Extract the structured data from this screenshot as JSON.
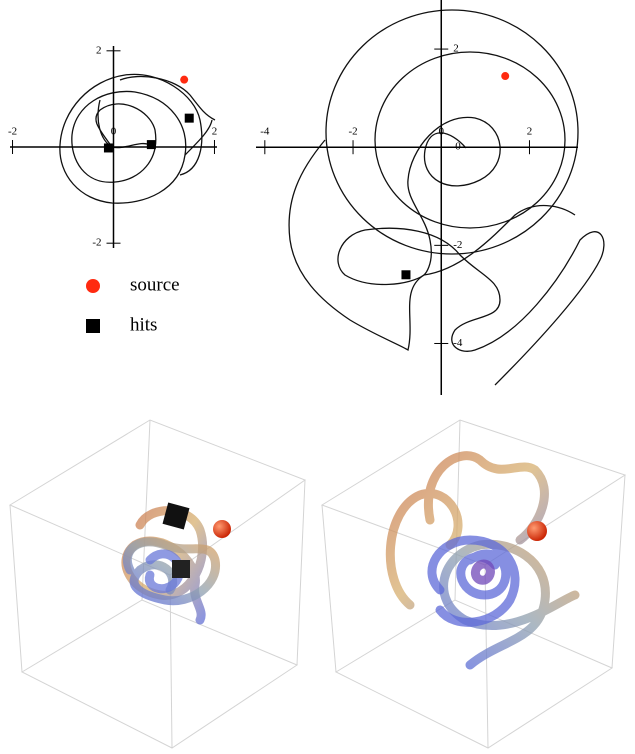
{
  "chart_data": [
    {
      "type": "scatter",
      "xlim": [
        -2.05,
        2.05
      ],
      "ylim": [
        -2.1,
        2.1
      ],
      "xticks": [
        -2,
        0,
        2
      ],
      "yticks": [
        -2,
        2
      ],
      "series": [
        {
          "name": "source",
          "color": "#ff2a10",
          "x": [
            1.4
          ],
          "values": [
            1.4
          ]
        },
        {
          "name": "hits",
          "color": "#000000",
          "x": [
            1.5,
            0.75,
            -0.1
          ],
          "values": [
            0.6,
            0.05,
            -0.02
          ]
        }
      ]
    },
    {
      "type": "scatter",
      "xlim": [
        -4.2,
        3.1
      ],
      "ylim": [
        -5.05,
        3.0
      ],
      "xticks": [
        -4,
        -2,
        0,
        2
      ],
      "yticks": [
        -4,
        -2,
        0,
        2
      ],
      "series": [
        {
          "color": "#ff2a10",
          "x": [
            1.45
          ],
          "values": [
            1.45
          ]
        },
        {
          "color": "#000000",
          "x": [
            -0.8
          ],
          "values": [
            -2.6
          ]
        }
      ]
    }
  ]
}
